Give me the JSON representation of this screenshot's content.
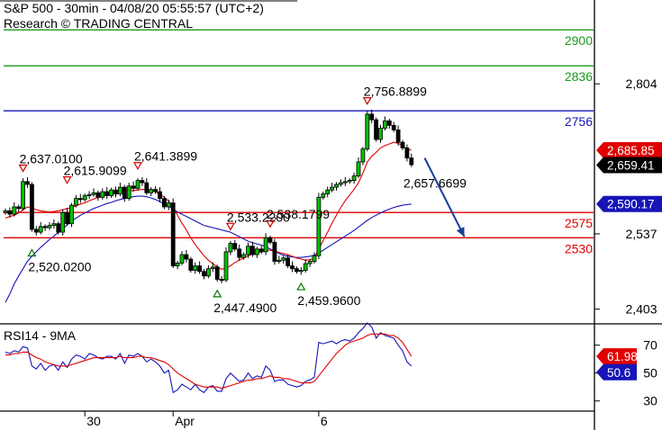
{
  "header": {
    "title": "S&P 500 - 30min - 04/08/20 05:55:57 (UTC+2)",
    "subtitle": "Research © TRADING CENTRAL"
  },
  "chart_data": [
    {
      "type": "candlestick",
      "name": "price",
      "y_axis": {
        "ticks": [
          "2,804",
          "2,537",
          "2,403"
        ],
        "tick_values": [
          2804,
          2537,
          2403
        ],
        "ylim": [
          2380,
          2950
        ]
      },
      "x_axis": {
        "ticks": [
          "30",
          "Apr",
          "6"
        ],
        "tick_index": [
          18,
          38,
          71
        ]
      },
      "horizontal_levels": [
        {
          "label": "2900",
          "value": 2900,
          "color": "#1a9a1a"
        },
        {
          "label": "2836",
          "value": 2836,
          "color": "#1a9a1a"
        },
        {
          "label": "2756",
          "value": 2756,
          "color": "#1515b8"
        },
        {
          "label": "2575",
          "value": 2575,
          "color": "#e00000"
        },
        {
          "label": "2530",
          "value": 2530,
          "color": "#e00000"
        }
      ],
      "price_tags": [
        {
          "label": "2,685.85",
          "value": 2685.85,
          "style": "red"
        },
        {
          "label": "2,659.41",
          "value": 2659.41,
          "style": "black"
        },
        {
          "label": "2,590.17",
          "value": 2590.17,
          "style": "blue"
        }
      ],
      "annotations": [
        {
          "label": "2,637.0100",
          "index": 4,
          "value": 2637.01,
          "kind": "high"
        },
        {
          "label": "2,615.9099",
          "index": 14,
          "value": 2615.91,
          "kind": "high"
        },
        {
          "label": "2,641.3899",
          "index": 30,
          "value": 2641.39,
          "kind": "high"
        },
        {
          "label": "2,520.0200",
          "index": 6,
          "value": 2520.02,
          "kind": "low"
        },
        {
          "label": "2,447.4900",
          "index": 48,
          "value": 2447.49,
          "kind": "low"
        },
        {
          "label": "2,533.2200",
          "index": 51,
          "value": 2533.22,
          "kind": "high"
        },
        {
          "label": "2,538.1799",
          "index": 60,
          "value": 2538.18,
          "kind": "high"
        },
        {
          "label": "2,459.9600",
          "index": 67,
          "value": 2459.96,
          "kind": "low"
        },
        {
          "label": "2,756.8899",
          "index": 82,
          "value": 2756.89,
          "kind": "high"
        },
        {
          "label": "2,657.6699",
          "index": 91,
          "value": 2657.67,
          "kind": "last"
        }
      ],
      "forecast_arrow": {
        "from": [
          95,
          2672
        ],
        "to": [
          104,
          2532
        ],
        "color": "#1a3f99"
      },
      "closes": [
        2578,
        2572,
        2585,
        2582,
        2630,
        2625,
        2545,
        2540,
        2550,
        2548,
        2552,
        2555,
        2540,
        2575,
        2555,
        2588,
        2600,
        2598,
        2605,
        2607,
        2610,
        2602,
        2612,
        2605,
        2615,
        2608,
        2620,
        2600,
        2622,
        2618,
        2632,
        2628,
        2610,
        2616,
        2612,
        2600,
        2585,
        2592,
        2480,
        2485,
        2500,
        2492,
        2472,
        2480,
        2470,
        2462,
        2475,
        2478,
        2456,
        2455,
        2505,
        2520,
        2510,
        2495,
        2500,
        2515,
        2500,
        2510,
        2505,
        2530,
        2522,
        2488,
        2490,
        2494,
        2480,
        2475,
        2470,
        2472,
        2484,
        2488,
        2498,
        2602,
        2608,
        2615,
        2620,
        2625,
        2628,
        2630,
        2632,
        2640,
        2665,
        2688,
        2750,
        2740,
        2705,
        2725,
        2738,
        2730,
        2722,
        2700,
        2690,
        2672,
        2660
      ],
      "ma_fast": [
        2565,
        2568,
        2570,
        2574,
        2580,
        2585,
        2583,
        2580,
        2578,
        2577,
        2576,
        2577,
        2578,
        2580,
        2582,
        2584,
        2587,
        2590,
        2592,
        2596,
        2599,
        2602,
        2604,
        2606,
        2608,
        2610,
        2612,
        2612,
        2614,
        2614,
        2615,
        2616,
        2616,
        2614,
        2612,
        2608,
        2602,
        2595,
        2585,
        2570,
        2556,
        2544,
        2530,
        2518,
        2508,
        2498,
        2490,
        2484,
        2478,
        2474,
        2476,
        2480,
        2486,
        2490,
        2494,
        2498,
        2501,
        2503,
        2505,
        2508,
        2508,
        2506,
        2504,
        2502,
        2500,
        2497,
        2494,
        2492,
        2490,
        2491,
        2494,
        2510,
        2525,
        2540,
        2556,
        2570,
        2584,
        2596,
        2606,
        2616,
        2628,
        2645,
        2665,
        2675,
        2682,
        2690,
        2694,
        2697,
        2700,
        2698,
        2694,
        2688,
        2686
      ],
      "ma_slow": [
        2415,
        2430,
        2448,
        2462,
        2475,
        2488,
        2497,
        2505,
        2513,
        2520,
        2527,
        2533,
        2540,
        2546,
        2553,
        2560,
        2565,
        2570,
        2574,
        2578,
        2582,
        2585,
        2588,
        2591,
        2593,
        2596,
        2598,
        2600,
        2602,
        2603,
        2604,
        2604,
        2603,
        2601,
        2598,
        2594,
        2590,
        2586,
        2581,
        2576,
        2572,
        2568,
        2564,
        2560,
        2556,
        2552,
        2550,
        2548,
        2546,
        2544,
        2542,
        2540,
        2536,
        2532,
        2528,
        2524,
        2521,
        2519,
        2517,
        2514,
        2510,
        2506,
        2502,
        2499,
        2497,
        2496,
        2495,
        2495,
        2496,
        2497,
        2499,
        2503,
        2508,
        2513,
        2518,
        2523,
        2528,
        2533,
        2538,
        2543,
        2549,
        2555,
        2561,
        2566,
        2570,
        2574,
        2578,
        2581,
        2584,
        2586,
        2588,
        2589,
        2590
      ]
    },
    {
      "type": "line",
      "name": "rsi",
      "title": "RSI14 - 9MA",
      "y_axis": {
        "ticks": [
          "70",
          "50",
          "30"
        ],
        "tick_values": [
          70,
          50,
          30
        ],
        "ylim": [
          24,
          84
        ]
      },
      "price_tags": [
        {
          "label": "61.9842",
          "value": 61.98,
          "style": "red"
        },
        {
          "label": "50.6",
          "value": 50.6,
          "style": "blue"
        }
      ],
      "series": [
        {
          "color": "#1515b8",
          "values": [
            65,
            64,
            66,
            65,
            69,
            68,
            55,
            53,
            57,
            52,
            55,
            56,
            52,
            58,
            54,
            60,
            63,
            62,
            60,
            64,
            63,
            61,
            60,
            62,
            62,
            60,
            64,
            57,
            63,
            62,
            64,
            62,
            58,
            60,
            58,
            55,
            50,
            52,
            36,
            38,
            42,
            40,
            38,
            42,
            38,
            36,
            40,
            41,
            37,
            37,
            46,
            50,
            47,
            44,
            45,
            50,
            46,
            48,
            47,
            55,
            52,
            44,
            45,
            45,
            42,
            41,
            40,
            41,
            44,
            45,
            47,
            72,
            71,
            72,
            73,
            71,
            73,
            74,
            73,
            75,
            79,
            82,
            86,
            83,
            75,
            79,
            77,
            76,
            75,
            70,
            66,
            58,
            55
          ]
        },
        {
          "color": "#e00000",
          "values": [
            63,
            63,
            64,
            64,
            65,
            65,
            63,
            61,
            60,
            58,
            57,
            56,
            55,
            55,
            55,
            56,
            57,
            58,
            59,
            60,
            61,
            61,
            61,
            61,
            61,
            61,
            62,
            61,
            61,
            61,
            62,
            62,
            61,
            61,
            60,
            59,
            58,
            56,
            53,
            50,
            48,
            46,
            44,
            42,
            41,
            40,
            40,
            40,
            40,
            39,
            40,
            41,
            42,
            43,
            44,
            45,
            45,
            46,
            46,
            47,
            48,
            47,
            47,
            46,
            46,
            45,
            44,
            43,
            43,
            43,
            44,
            48,
            52,
            56,
            60,
            64,
            67,
            70,
            72,
            73,
            74,
            75,
            77,
            78,
            78,
            78,
            78,
            77,
            77,
            75,
            72,
            67,
            62
          ]
        }
      ]
    }
  ]
}
